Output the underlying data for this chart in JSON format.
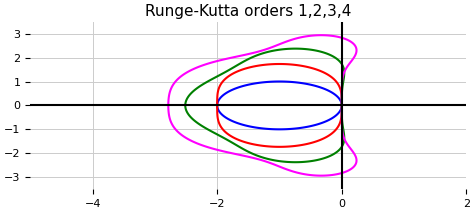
{
  "title": "Runge-Kutta orders 1,2,3,4",
  "xlim": [
    -5,
    2
  ],
  "ylim": [
    -3.5,
    3.5
  ],
  "xticks": [
    -4,
    -2,
    0,
    2
  ],
  "yticks": [
    -3,
    -2,
    -1,
    0,
    1,
    2,
    3
  ],
  "colors": [
    "blue",
    "red",
    "green",
    "magenta"
  ],
  "orders": [
    1,
    2,
    3,
    4
  ],
  "background": "white",
  "grid_color": "#cccccc",
  "axis_color": "black",
  "linewidth": 1.5,
  "title_fontsize": 11
}
